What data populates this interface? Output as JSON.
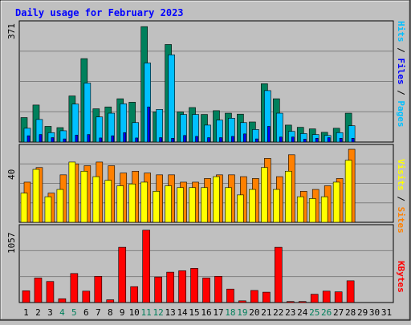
{
  "chart_data": [
    {
      "type": "bar",
      "title": "Daily usage for February 2023",
      "days": [
        "1",
        "2",
        "3",
        "4",
        "5",
        "6",
        "7",
        "8",
        "9",
        "10",
        "11",
        "12",
        "13",
        "14",
        "15",
        "16",
        "17",
        "18",
        "19",
        "20",
        "21",
        "22",
        "23",
        "24",
        "25",
        "26",
        "27",
        "28",
        "29",
        "30",
        "31"
      ],
      "weekend_days": [
        "4",
        "5",
        "11",
        "12",
        "18",
        "19",
        "25",
        "26"
      ],
      "panels": [
        {
          "name": "hits-files-pages",
          "ymax_label": "371",
          "ylim": [
            0,
            371
          ],
          "legend": [
            "Pages",
            "/",
            "Files",
            "/",
            "Hits"
          ],
          "series": [
            {
              "name": "Hits",
              "color": "#00805c",
              "values": [
                78,
                118,
                50,
                46,
                147,
                266,
                106,
                112,
                138,
                127,
                368,
                96,
                311,
                96,
                110,
                88,
                100,
                92,
                89,
                64,
                186,
                138,
                54,
                47,
                42,
                31,
                44,
                92,
                0,
                0,
                0
              ]
            },
            {
              "name": "Files",
              "color": "#00c0ff",
              "values": [
                44,
                72,
                30,
                36,
                121,
                188,
                80,
                92,
                122,
                62,
                252,
                104,
                278,
                88,
                88,
                54,
                70,
                76,
                62,
                40,
                164,
                92,
                34,
                27,
                24,
                21,
                30,
                52,
                0,
                0,
                0
              ]
            },
            {
              "name": "Pages",
              "color": "#0000ff",
              "values": [
                20,
                24,
                14,
                10,
                22,
                24,
                13,
                20,
                30,
                13,
                112,
                14,
                12,
                21,
                18,
                14,
                14,
                18,
                26,
                10,
                50,
                16,
                16,
                9,
                12,
                14,
                12,
                12,
                0,
                0,
                0
              ]
            }
          ]
        },
        {
          "name": "visits-sites",
          "ymax_label": "40",
          "ylim": [
            0,
            40
          ],
          "legend": [
            "Sites",
            "/",
            "Visits"
          ],
          "series": [
            {
              "name": "Visits",
              "color": "#ff8000",
              "values": [
                22,
                30,
                16,
                26,
                32,
                31,
                33,
                31,
                27,
                28,
                27,
                26,
                26,
                22,
                22,
                24,
                26,
                26,
                25,
                24,
                35,
                25,
                37,
                17,
                18,
                20,
                24,
                40,
                0,
                0,
                0
              ]
            },
            {
              "name": "Sites",
              "color": "#ffff00",
              "values": [
                16,
                29,
                14,
                18,
                33,
                28,
                25,
                23,
                20,
                21,
                22,
                17,
                20,
                19,
                19,
                19,
                25,
                19,
                15,
                18,
                30,
                18,
                28,
                14,
                13,
                14,
                22,
                34,
                0,
                0,
                0
              ]
            }
          ]
        },
        {
          "name": "kbytes",
          "ymax_label": "1057",
          "ylim": [
            0,
            1057
          ],
          "legend": [
            "KBytes"
          ],
          "series": [
            {
              "name": "KBytes",
              "color": "#ff0000",
              "values": [
                170,
                355,
                305,
                55,
                420,
                165,
                380,
                40,
                800,
                230,
                1047,
                370,
                440,
                460,
                495,
                355,
                380,
                195,
                25,
                175,
                150,
                800,
                15,
                15,
                120,
                165,
                155,
                315,
                0,
                0,
                0
              ]
            }
          ]
        }
      ]
    }
  ]
}
